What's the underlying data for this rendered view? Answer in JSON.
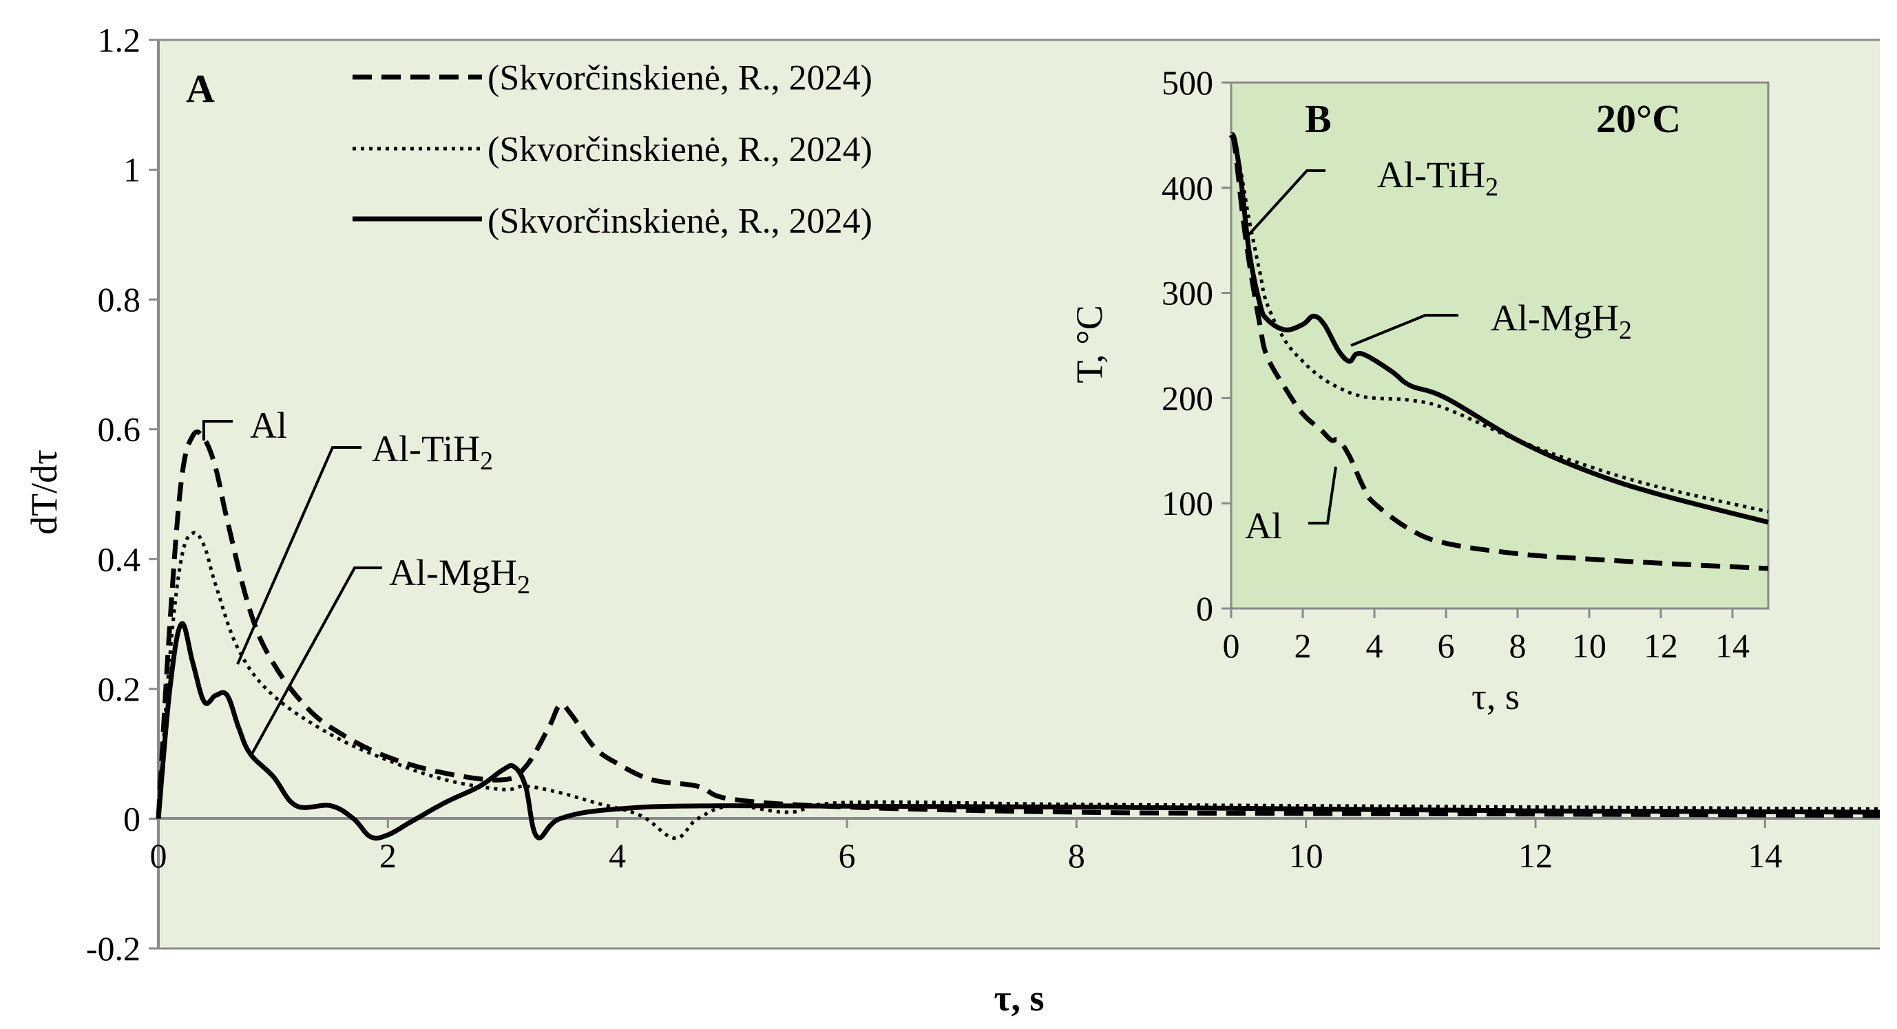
{
  "colors": {
    "plot_bg_a": "#e9efdd",
    "plot_bg_b": "#d3e7c1",
    "axis": "#8a8a8a",
    "series": "#000000"
  },
  "chart_data": [
    {
      "id": "A",
      "type": "line",
      "panel_label": "A",
      "xlabel": "τ, s",
      "ylabel": "dT/dτ",
      "xlim": [
        0,
        15
      ],
      "ylim": [
        -0.2,
        1.2
      ],
      "xticks": [
        "0",
        "2",
        "4",
        "6",
        "8",
        "10",
        "12",
        "14"
      ],
      "yticks": [
        "-0.2",
        "0",
        "0.2",
        "0.4",
        "0.6",
        "0.8",
        "1",
        "1.2"
      ],
      "legend": [
        {
          "label": "(Skvorčinskienė, R., 2024)",
          "style": "dashed"
        },
        {
          "label": "(Skvorčinskienė, R., 2024)",
          "style": "dotted"
        },
        {
          "label": "(Skvorčinskienė, R., 2024)",
          "style": "solid"
        }
      ],
      "annotations": [
        {
          "label": "Al"
        },
        {
          "label_base": "Al-TiH",
          "subscript": "2"
        },
        {
          "label_base": "Al-MgH",
          "subscript": "2"
        }
      ],
      "series": [
        {
          "name": "Al",
          "style": "dashed",
          "x": [
            0,
            0.1,
            0.2,
            0.3,
            0.4,
            0.5,
            0.6,
            0.8,
            1.0,
            1.3,
            1.6,
            2.0,
            2.5,
            3.0,
            3.2,
            3.4,
            3.5,
            3.6,
            3.8,
            4.0,
            4.3,
            4.7,
            5.0,
            6.0,
            8.0,
            10.0,
            12.0,
            15.0
          ],
          "y": [
            0,
            0.3,
            0.52,
            0.59,
            0.585,
            0.54,
            0.46,
            0.32,
            0.24,
            0.17,
            0.13,
            0.095,
            0.07,
            0.06,
            0.08,
            0.14,
            0.175,
            0.16,
            0.11,
            0.085,
            0.06,
            0.05,
            0.03,
            0.018,
            0.01,
            0.008,
            0.007,
            0.005
          ]
        },
        {
          "name": "Al-TiH2",
          "style": "dotted",
          "x": [
            0,
            0.1,
            0.2,
            0.3,
            0.4,
            0.5,
            0.7,
            1.0,
            1.5,
            2.0,
            2.5,
            3.0,
            3.2,
            3.5,
            3.8,
            4.2,
            4.5,
            4.7,
            5.0,
            5.5,
            6.0,
            8.0,
            10.0,
            12.0,
            15.0
          ],
          "y": [
            0,
            0.25,
            0.4,
            0.44,
            0.42,
            0.36,
            0.26,
            0.19,
            0.13,
            0.09,
            0.06,
            0.045,
            0.05,
            0.04,
            0.025,
            0.005,
            -0.03,
            0.0,
            0.02,
            0.01,
            0.025,
            0.022,
            0.02,
            0.018,
            0.015
          ]
        },
        {
          "name": "Al-MgH2",
          "style": "solid",
          "x": [
            0,
            0.1,
            0.2,
            0.3,
            0.4,
            0.5,
            0.6,
            0.7,
            0.8,
            1.0,
            1.2,
            1.5,
            1.7,
            1.85,
            2.0,
            2.2,
            2.5,
            2.8,
            3.0,
            3.1,
            3.2,
            3.3,
            3.5,
            4.0,
            5.0,
            8.0,
            12.0,
            15.0
          ],
          "y": [
            0,
            0.2,
            0.3,
            0.24,
            0.18,
            0.19,
            0.19,
            0.14,
            0.1,
            0.065,
            0.02,
            0.02,
            0.0,
            -0.028,
            -0.025,
            -0.005,
            0.025,
            0.05,
            0.075,
            0.08,
            0.05,
            -0.028,
            0.0,
            0.015,
            0.02,
            0.018,
            0.012,
            0.01
          ]
        }
      ]
    },
    {
      "id": "B",
      "type": "line",
      "panel_label": "B",
      "temperature_label": "20°C",
      "xlabel": "τ, s",
      "ylabel": "T, °C",
      "xlim": [
        0,
        15
      ],
      "ylim": [
        0,
        500
      ],
      "xticks": [
        "0",
        "2",
        "4",
        "6",
        "8",
        "10",
        "12",
        "14"
      ],
      "yticks": [
        "0",
        "100",
        "200",
        "300",
        "400",
        "500"
      ],
      "annotations": [
        {
          "label": "Al"
        },
        {
          "label_base": "Al-TiH",
          "subscript": "2"
        },
        {
          "label_base": "Al-MgH",
          "subscript": "2"
        }
      ],
      "series": [
        {
          "name": "Al",
          "style": "dashed",
          "x": [
            0,
            0.1,
            0.3,
            0.5,
            0.8,
            1.0,
            1.5,
            2.0,
            2.5,
            2.8,
            3.0,
            3.3,
            3.7,
            4.0,
            5.0,
            6.0,
            8.0,
            10.0,
            12.0,
            15.0
          ],
          "y": [
            450,
            440,
            380,
            330,
            270,
            240,
            210,
            185,
            170,
            160,
            160,
            145,
            115,
            100,
            75,
            62,
            52,
            47,
            43,
            38
          ]
        },
        {
          "name": "Al-TiH2",
          "style": "dotted",
          "x": [
            0,
            0.1,
            0.3,
            0.5,
            0.8,
            1.0,
            1.5,
            2.0,
            2.5,
            3.0,
            3.5,
            4.0,
            5.0,
            6.0,
            8.0,
            10.0,
            12.0,
            15.0
          ],
          "y": [
            450,
            445,
            410,
            370,
            320,
            290,
            255,
            235,
            220,
            210,
            203,
            200,
            198,
            190,
            160,
            135,
            115,
            92
          ]
        },
        {
          "name": "Al-MgH2",
          "style": "solid",
          "x": [
            0,
            0.1,
            0.3,
            0.5,
            0.8,
            1.0,
            1.5,
            2.0,
            2.3,
            2.6,
            3.0,
            3.3,
            3.5,
            3.8,
            4.5,
            5.0,
            6.0,
            8.0,
            10.0,
            12.0,
            15.0
          ],
          "y": [
            450,
            445,
            400,
            340,
            290,
            275,
            265,
            270,
            278,
            270,
            245,
            235,
            242,
            240,
            225,
            212,
            200,
            160,
            130,
            108,
            82
          ]
        }
      ]
    }
  ]
}
